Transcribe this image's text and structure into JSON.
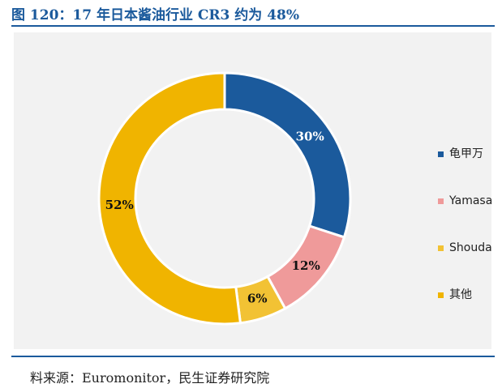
{
  "title": "图 120：17 年日本酱油行业 CR3 约为 48%",
  "source": "料来源：Euromonitor，民生证券研究院",
  "chart_data": {
    "type": "pie",
    "variant": "donut",
    "start": "top",
    "direction": "clockwise",
    "legend_position": "right",
    "slices": [
      {
        "label": "龟甲万",
        "value": 30,
        "display": "30%",
        "color": "#1b5a9c",
        "label_color": "#ffffff"
      },
      {
        "label": "Yamasa",
        "value": 12,
        "display": "12%",
        "color": "#ef9a9a",
        "label_color": "#111111"
      },
      {
        "label": "Shouda",
        "value": 6,
        "display": "6%",
        "color": "#f2c234",
        "label_color": "#111111"
      },
      {
        "label": "其他",
        "value": 52,
        "display": "52%",
        "color": "#f0b400",
        "label_color": "#111111"
      }
    ]
  }
}
